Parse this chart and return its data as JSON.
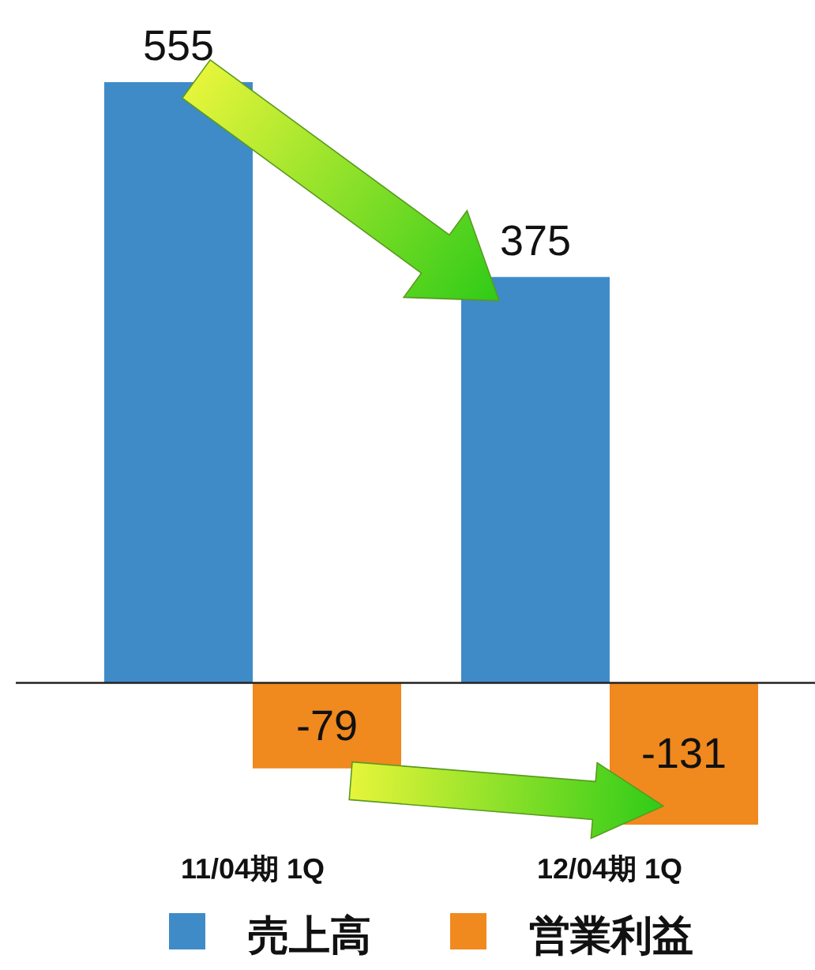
{
  "chart_data": {
    "type": "bar",
    "categories": [
      "11/04期 1Q",
      "12/04期 1Q"
    ],
    "series": [
      {
        "name": "売上高",
        "color": "#3f8bc8",
        "values": [
          555,
          375
        ]
      },
      {
        "name": "営業利益",
        "color": "#f0891e",
        "values": [
          -79,
          -131
        ]
      }
    ],
    "data_labels": true,
    "legend": "bottom"
  }
}
